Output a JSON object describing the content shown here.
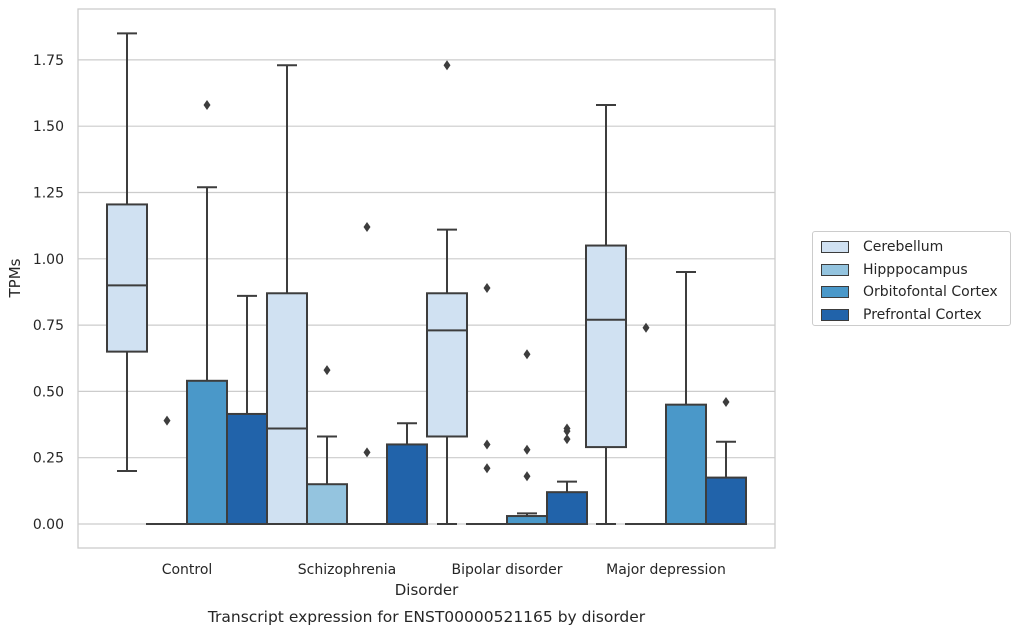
{
  "chart_data": {
    "type": "box",
    "xlabel": "Disorder",
    "ylabel": "TPMs",
    "caption": "Transcript expression for ENST00000521165 by disorder",
    "categories": [
      "Control",
      "Schizophrenia",
      "Bipolar disorder",
      "Major depression"
    ],
    "ylim": [
      -0.09,
      1.94
    ],
    "yticks": [
      0.0,
      0.25,
      0.5,
      0.75,
      1.0,
      1.25,
      1.5,
      1.75
    ],
    "ytick_labels": [
      "0.00",
      "0.25",
      "0.50",
      "0.75",
      "1.00",
      "1.25",
      "1.50",
      "1.75"
    ],
    "grid": true,
    "legend_position": "right",
    "series": [
      {
        "name": "Cerebellum",
        "color": "#d0e1f2",
        "boxes": [
          {
            "q1": 0.65,
            "median": 0.9,
            "q3": 1.205,
            "whislo": 0.2,
            "whishi": 1.85,
            "fliers": []
          },
          {
            "q1": 0.0,
            "median": 0.36,
            "q3": 0.87,
            "whislo": 0.0,
            "whishi": 1.73,
            "fliers": []
          },
          {
            "q1": 0.33,
            "median": 0.73,
            "q3": 0.87,
            "whislo": 0.0,
            "whishi": 1.11,
            "fliers": [
              1.73
            ]
          },
          {
            "q1": 0.29,
            "median": 0.77,
            "q3": 1.05,
            "whislo": 0.0,
            "whishi": 1.58,
            "fliers": []
          }
        ]
      },
      {
        "name": "Hipppocampus",
        "color": "#94c4df",
        "boxes": [
          {
            "q1": 0.0,
            "median": 0.0,
            "q3": 0.0,
            "whislo": 0.0,
            "whishi": 0.0,
            "fliers": [
              0.39
            ]
          },
          {
            "q1": 0.0,
            "median": 0.0,
            "q3": 0.15,
            "whislo": 0.0,
            "whishi": 0.33,
            "fliers": [
              0.58
            ]
          },
          {
            "q1": 0.0,
            "median": 0.0,
            "q3": 0.0,
            "whislo": 0.0,
            "whishi": 0.0,
            "fliers": [
              0.89,
              0.3,
              0.21
            ]
          },
          {
            "q1": 0.0,
            "median": 0.0,
            "q3": 0.0,
            "whislo": 0.0,
            "whishi": 0.0,
            "fliers": [
              0.74
            ]
          }
        ]
      },
      {
        "name": "Orbitofontal Cortex",
        "color": "#4a98c9",
        "boxes": [
          {
            "q1": 0.0,
            "median": 0.0,
            "q3": 0.54,
            "whislo": 0.0,
            "whishi": 1.27,
            "fliers": [
              1.58
            ]
          },
          {
            "q1": 0.0,
            "median": 0.0,
            "q3": 0.0,
            "whislo": 0.0,
            "whishi": 0.0,
            "fliers": [
              1.12,
              0.27
            ]
          },
          {
            "q1": 0.0,
            "median": 0.0,
            "q3": 0.03,
            "whislo": 0.0,
            "whishi": 0.04,
            "fliers": [
              0.64,
              0.28,
              0.18
            ]
          },
          {
            "q1": 0.0,
            "median": 0.0,
            "q3": 0.45,
            "whislo": 0.0,
            "whishi": 0.95,
            "fliers": []
          }
        ]
      },
      {
        "name": "Prefrontal Cortex",
        "color": "#2163aa",
        "boxes": [
          {
            "q1": 0.0,
            "median": 0.0,
            "q3": 0.415,
            "whislo": 0.0,
            "whishi": 0.86,
            "fliers": []
          },
          {
            "q1": 0.0,
            "median": 0.0,
            "q3": 0.3,
            "whislo": 0.0,
            "whishi": 0.38,
            "fliers": []
          },
          {
            "q1": 0.0,
            "median": 0.0,
            "q3": 0.12,
            "whislo": 0.0,
            "whishi": 0.16,
            "fliers": [
              0.36,
              0.35,
              0.32
            ]
          },
          {
            "q1": 0.0,
            "median": 0.0,
            "q3": 0.175,
            "whislo": 0.0,
            "whishi": 0.31,
            "fliers": [
              0.46
            ]
          }
        ]
      }
    ]
  }
}
